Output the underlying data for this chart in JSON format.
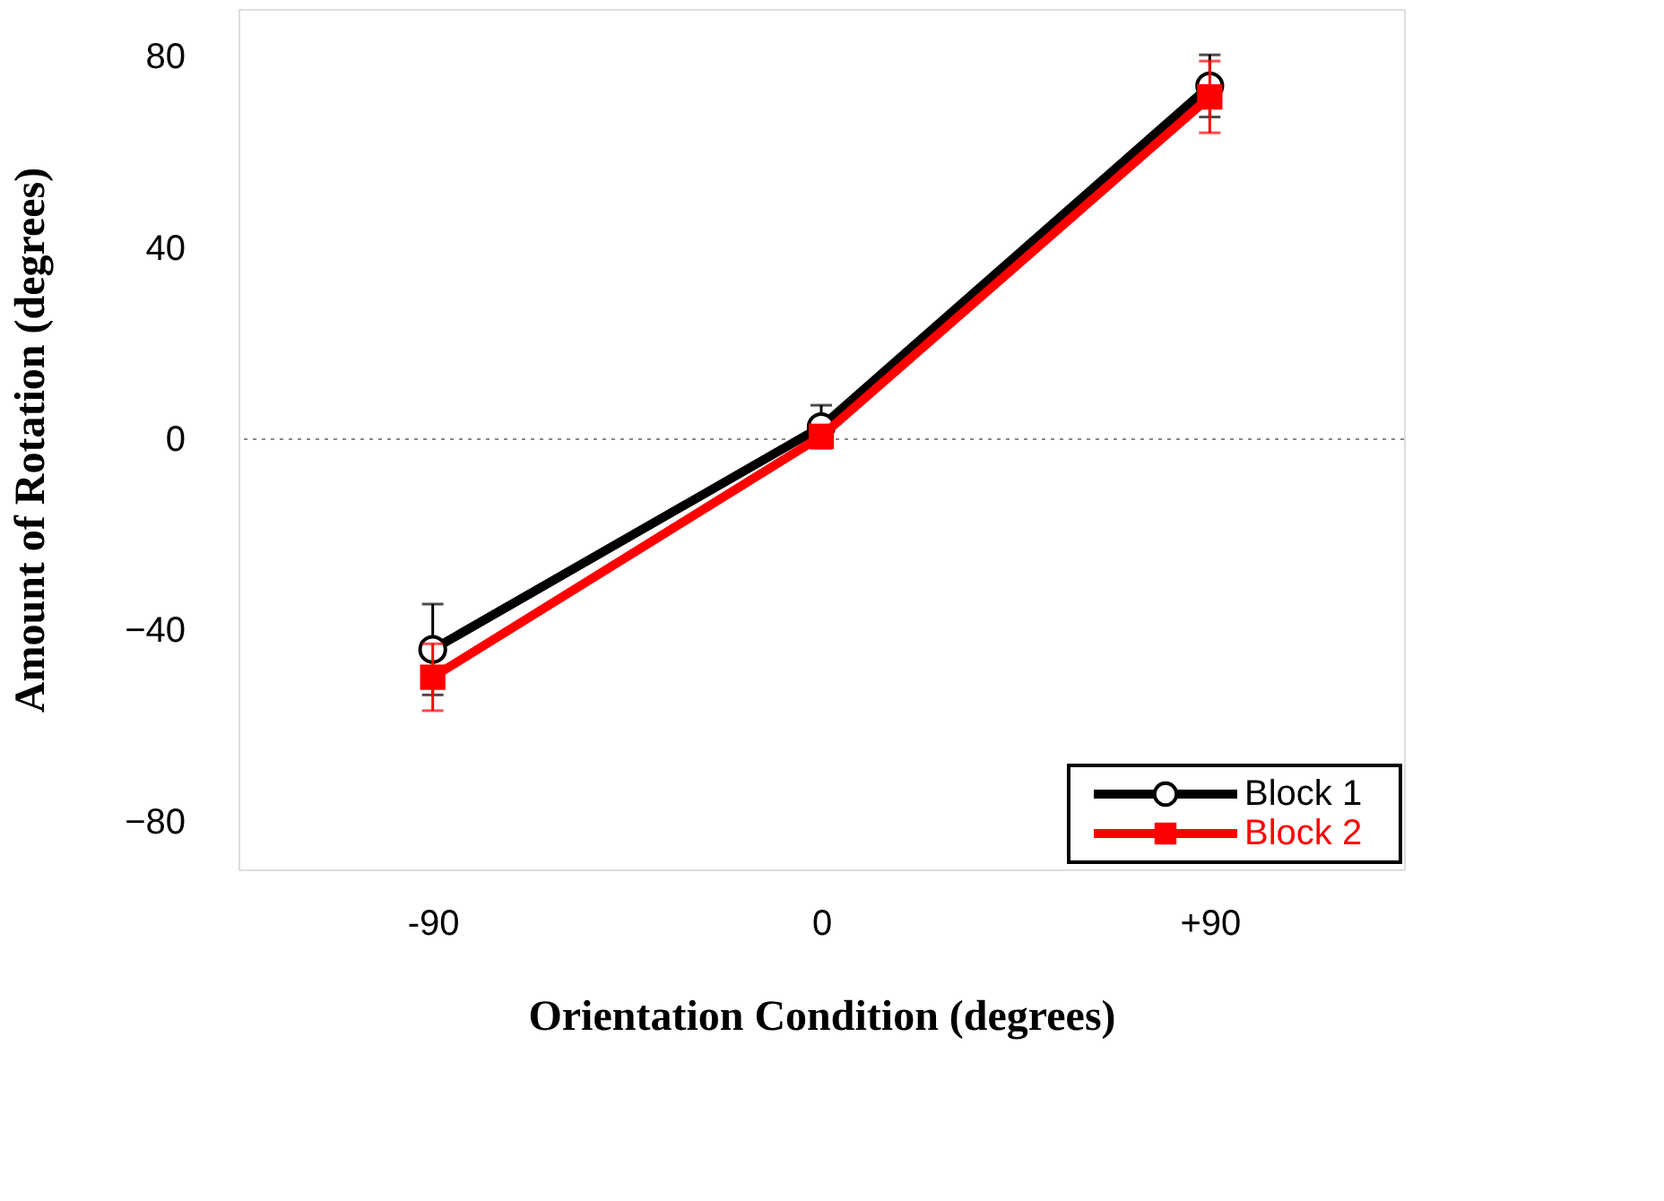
{
  "chart_data": {
    "type": "line",
    "xlabel": "Orientation Condition (degrees)",
    "ylabel": "Amount of Rotation (degrees)",
    "categories": [
      "-90",
      "0",
      "+90"
    ],
    "ylim": [
      -90,
      90
    ],
    "yticks": [
      -80,
      -40,
      0,
      40,
      80
    ],
    "grid": false,
    "legend": "bottom right",
    "line_style": "solid",
    "ref_lines": [
      {
        "axis": "y",
        "value": 0,
        "color": "#888888",
        "line_style": "dotted"
      }
    ],
    "series": [
      {
        "name": "Block 1",
        "color": "#000000",
        "marker": "circle",
        "values": [
          -44,
          2.6,
          73.9
        ],
        "errors": [
          9.5,
          4.5,
          6.5
        ]
      },
      {
        "name": "Block 2",
        "color": "#ff0000",
        "marker": "square",
        "values": [
          -49.8,
          0.6,
          71.6
        ],
        "errors": [
          7,
          2,
          7.5
        ]
      }
    ]
  }
}
